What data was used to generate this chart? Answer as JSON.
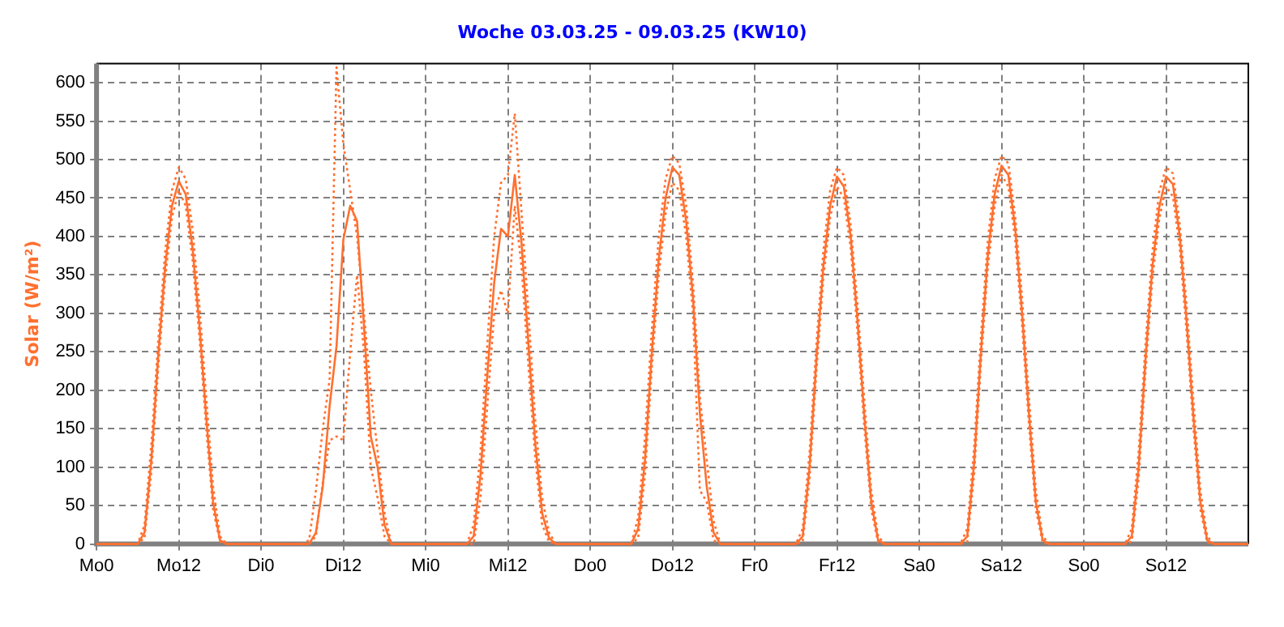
{
  "chart_data": {
    "type": "line",
    "title": "Woche 03.03.25 - 09.03.25 (KW10)",
    "ylabel": "Solar (W/m²)",
    "categories": [
      "Mo0",
      null,
      null,
      null,
      null,
      null,
      null,
      null,
      null,
      null,
      null,
      null,
      "Mo12",
      null,
      null,
      null,
      null,
      null,
      null,
      null,
      null,
      null,
      null,
      null,
      "Di0",
      null,
      null,
      null,
      null,
      null,
      null,
      null,
      null,
      null,
      null,
      null,
      "Di12",
      null,
      null,
      null,
      null,
      null,
      null,
      null,
      null,
      null,
      null,
      null,
      "Mi0",
      null,
      null,
      null,
      null,
      null,
      null,
      null,
      null,
      null,
      null,
      null,
      "Mi12",
      null,
      null,
      null,
      null,
      null,
      null,
      null,
      null,
      null,
      null,
      null,
      "Do0",
      null,
      null,
      null,
      null,
      null,
      null,
      null,
      null,
      null,
      null,
      null,
      "Do12",
      null,
      null,
      null,
      null,
      null,
      null,
      null,
      null,
      null,
      null,
      null,
      "Fr0",
      null,
      null,
      null,
      null,
      null,
      null,
      null,
      null,
      null,
      null,
      null,
      "Fr12",
      null,
      null,
      null,
      null,
      null,
      null,
      null,
      null,
      null,
      null,
      null,
      "Sa0",
      null,
      null,
      null,
      null,
      null,
      null,
      null,
      null,
      null,
      null,
      null,
      "Sa12",
      null,
      null,
      null,
      null,
      null,
      null,
      null,
      null,
      null,
      null,
      null,
      "So0",
      null,
      null,
      null,
      null,
      null,
      null,
      null,
      null,
      null,
      null,
      null,
      "So12",
      null,
      null,
      null,
      null,
      null,
      null,
      null,
      null,
      null,
      null,
      null,
      null
    ],
    "series": [
      {
        "color": "#ff7030",
        "line_style": "dotted",
        "values": [
          0,
          0,
          0,
          0,
          0,
          0,
          0,
          25,
          130,
          265,
          380,
          460,
          490,
          475,
          410,
          310,
          190,
          75,
          10,
          0,
          0,
          0,
          0,
          0,
          0,
          0,
          0,
          0,
          0,
          0,
          0,
          5,
          70,
          150,
          215,
          620,
          520,
          460,
          400,
          300,
          200,
          120,
          40,
          0,
          0,
          0,
          0,
          0,
          0,
          0,
          0,
          0,
          0,
          0,
          0,
          25,
          120,
          260,
          400,
          470,
          480,
          560,
          430,
          300,
          160,
          60,
          15,
          0,
          0,
          0,
          0,
          0,
          0,
          0,
          0,
          0,
          0,
          0,
          0,
          35,
          140,
          280,
          400,
          475,
          505,
          495,
          440,
          340,
          190,
          110,
          30,
          0,
          0,
          0,
          0,
          0,
          0,
          0,
          0,
          0,
          0,
          0,
          0,
          20,
          120,
          260,
          380,
          460,
          490,
          480,
          415,
          310,
          185,
          70,
          10,
          0,
          0,
          0,
          0,
          0,
          0,
          0,
          0,
          0,
          0,
          0,
          0,
          20,
          125,
          270,
          395,
          475,
          505,
          495,
          425,
          320,
          190,
          70,
          10,
          0,
          0,
          0,
          0,
          0,
          0,
          0,
          0,
          0,
          0,
          0,
          0,
          20,
          120,
          260,
          380,
          458,
          490,
          482,
          415,
          310,
          185,
          70,
          10,
          0,
          0,
          0,
          0,
          0,
          0
        ]
      },
      {
        "color": "#ff7030",
        "line_style": "solid",
        "values": [
          0,
          0,
          0,
          0,
          0,
          0,
          0,
          15,
          110,
          245,
          360,
          440,
          472,
          455,
          385,
          285,
          165,
          55,
          5,
          0,
          0,
          0,
          0,
          0,
          0,
          0,
          0,
          0,
          0,
          0,
          0,
          0,
          15,
          75,
          180,
          257,
          396,
          440,
          420,
          285,
          140,
          100,
          25,
          0,
          0,
          0,
          0,
          0,
          0,
          0,
          0,
          0,
          0,
          0,
          0,
          10,
          90,
          220,
          340,
          410,
          400,
          480,
          390,
          260,
          130,
          40,
          8,
          0,
          0,
          0,
          0,
          0,
          0,
          0,
          0,
          0,
          0,
          0,
          0,
          20,
          110,
          250,
          370,
          450,
          490,
          480,
          420,
          320,
          170,
          75,
          15,
          0,
          0,
          0,
          0,
          0,
          0,
          0,
          0,
          0,
          0,
          0,
          0,
          10,
          100,
          240,
          360,
          440,
          478,
          465,
          400,
          290,
          165,
          55,
          5,
          0,
          0,
          0,
          0,
          0,
          0,
          0,
          0,
          0,
          0,
          0,
          0,
          10,
          105,
          250,
          375,
          455,
          492,
          480,
          410,
          300,
          170,
          55,
          5,
          0,
          0,
          0,
          0,
          0,
          0,
          0,
          0,
          0,
          0,
          0,
          0,
          10,
          100,
          240,
          360,
          438,
          478,
          468,
          400,
          290,
          165,
          55,
          5,
          0,
          0,
          0,
          0,
          0,
          0
        ]
      },
      {
        "color": "#ff7030",
        "line_style": "dotted",
        "values": [
          0,
          0,
          0,
          0,
          0,
          0,
          0,
          8,
          95,
          230,
          345,
          425,
          460,
          440,
          370,
          270,
          150,
          45,
          3,
          0,
          0,
          0,
          0,
          0,
          0,
          0,
          0,
          0,
          0,
          0,
          0,
          0,
          10,
          80,
          135,
          140,
          135,
          250,
          350,
          250,
          100,
          60,
          10,
          0,
          0,
          0,
          0,
          0,
          0,
          0,
          0,
          0,
          0,
          0,
          0,
          0,
          60,
          180,
          300,
          330,
          300,
          440,
          360,
          230,
          110,
          25,
          3,
          0,
          0,
          0,
          0,
          0,
          0,
          0,
          0,
          0,
          0,
          0,
          0,
          8,
          90,
          230,
          350,
          430,
          470,
          460,
          400,
          300,
          70,
          55,
          5,
          0,
          0,
          0,
          0,
          0,
          0,
          0,
          0,
          0,
          0,
          0,
          0,
          3,
          85,
          225,
          345,
          425,
          465,
          450,
          385,
          275,
          150,
          45,
          2,
          0,
          0,
          0,
          0,
          0,
          0,
          0,
          0,
          0,
          0,
          0,
          0,
          3,
          90,
          235,
          360,
          440,
          480,
          465,
          395,
          285,
          155,
          45,
          2,
          0,
          0,
          0,
          0,
          0,
          0,
          0,
          0,
          0,
          0,
          0,
          0,
          3,
          85,
          225,
          345,
          423,
          465,
          452,
          385,
          275,
          150,
          45,
          2,
          0,
          0,
          0,
          0,
          0,
          0
        ]
      }
    ],
    "ylim": [
      0,
      625
    ],
    "yticks": [
      0,
      50,
      100,
      150,
      200,
      250,
      300,
      350,
      400,
      450,
      500,
      550,
      600
    ],
    "grid": true,
    "marker": "none",
    "legend": false
  }
}
